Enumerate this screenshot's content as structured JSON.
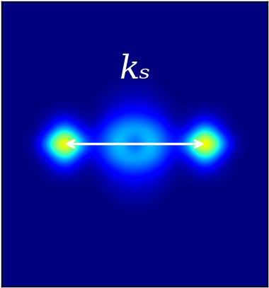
{
  "chart_data": {
    "type": "heatmap",
    "tick_labels": false,
    "annotation": "kₛ",
    "color": "jet",
    "clim": [
      0,
      100
    ],
    "cells": [
      [
        0,
        0,
        0,
        0,
        0,
        0,
        0,
        0,
        0,
        0,
        0,
        0,
        0,
        0,
        0,
        0,
        0,
        0,
        0
      ],
      [
        0,
        0,
        0,
        0,
        0,
        0,
        0,
        0,
        0,
        0,
        0,
        0,
        0,
        0,
        0,
        0,
        0,
        0,
        0
      ],
      [
        0,
        0,
        0,
        0,
        0,
        0,
        0,
        0,
        0,
        0,
        0,
        0,
        0,
        0,
        0,
        0,
        0,
        0,
        0
      ],
      [
        0,
        0,
        0,
        0,
        0,
        0,
        0,
        0,
        0,
        0,
        0,
        0,
        0,
        0,
        0,
        0,
        0,
        0,
        0
      ],
      [
        0,
        0,
        0,
        0,
        0,
        0,
        0,
        0,
        0,
        0,
        0,
        0,
        0,
        0,
        0,
        0,
        0,
        0,
        0
      ],
      [
        0,
        0,
        0,
        0,
        0,
        0,
        0,
        0,
        0,
        0,
        0,
        0,
        0,
        0,
        0,
        0,
        0,
        0,
        0
      ],
      [
        0,
        0,
        0,
        0,
        0,
        0,
        0,
        0,
        3,
        3,
        3,
        0,
        0,
        0,
        0,
        0,
        0,
        0,
        0
      ],
      [
        0,
        0,
        0,
        0,
        0,
        0,
        0,
        3,
        6,
        8,
        6,
        3,
        0,
        0,
        0,
        0,
        0,
        0,
        0
      ],
      [
        0,
        0,
        0,
        3,
        8,
        3,
        0,
        8,
        15,
        18,
        15,
        8,
        0,
        3,
        8,
        3,
        0,
        0,
        0
      ],
      [
        0,
        0,
        0,
        12,
        40,
        12,
        5,
        20,
        32,
        35,
        32,
        20,
        5,
        12,
        40,
        12,
        0,
        0,
        0
      ],
      [
        0,
        0,
        5,
        45,
        100,
        45,
        12,
        25,
        38,
        8,
        38,
        25,
        12,
        45,
        100,
        45,
        5,
        0,
        0
      ],
      [
        0,
        0,
        0,
        12,
        40,
        12,
        5,
        20,
        32,
        35,
        32,
        20,
        5,
        12,
        40,
        12,
        0,
        0,
        0
      ],
      [
        0,
        0,
        0,
        3,
        8,
        3,
        0,
        8,
        15,
        18,
        15,
        8,
        0,
        3,
        8,
        3,
        0,
        0,
        0
      ],
      [
        0,
        0,
        0,
        0,
        0,
        0,
        0,
        3,
        6,
        8,
        6,
        3,
        0,
        0,
        0,
        0,
        0,
        0,
        0
      ],
      [
        0,
        0,
        0,
        0,
        0,
        0,
        0,
        0,
        3,
        3,
        3,
        0,
        0,
        0,
        0,
        0,
        0,
        0,
        0
      ],
      [
        0,
        0,
        0,
        0,
        0,
        0,
        0,
        0,
        0,
        0,
        0,
        0,
        0,
        0,
        0,
        0,
        0,
        0,
        0
      ],
      [
        0,
        0,
        0,
        0,
        0,
        0,
        0,
        0,
        0,
        0,
        0,
        0,
        0,
        0,
        0,
        0,
        0,
        0,
        0
      ],
      [
        0,
        0,
        0,
        0,
        0,
        0,
        0,
        0,
        0,
        0,
        0,
        0,
        0,
        0,
        0,
        0,
        0,
        0,
        0
      ],
      [
        0,
        0,
        0,
        0,
        0,
        0,
        0,
        0,
        0,
        0,
        0,
        0,
        0,
        0,
        0,
        0,
        0,
        0,
        0
      ],
      [
        0,
        0,
        0,
        0,
        0,
        0,
        0,
        0,
        0,
        0,
        0,
        0,
        0,
        0,
        0,
        0,
        0,
        0,
        0
      ],
      [
        0,
        0,
        0,
        0,
        0,
        0,
        0,
        0,
        0,
        0,
        0,
        0,
        0,
        0,
        0,
        0,
        0,
        0,
        0
      ]
    ]
  }
}
